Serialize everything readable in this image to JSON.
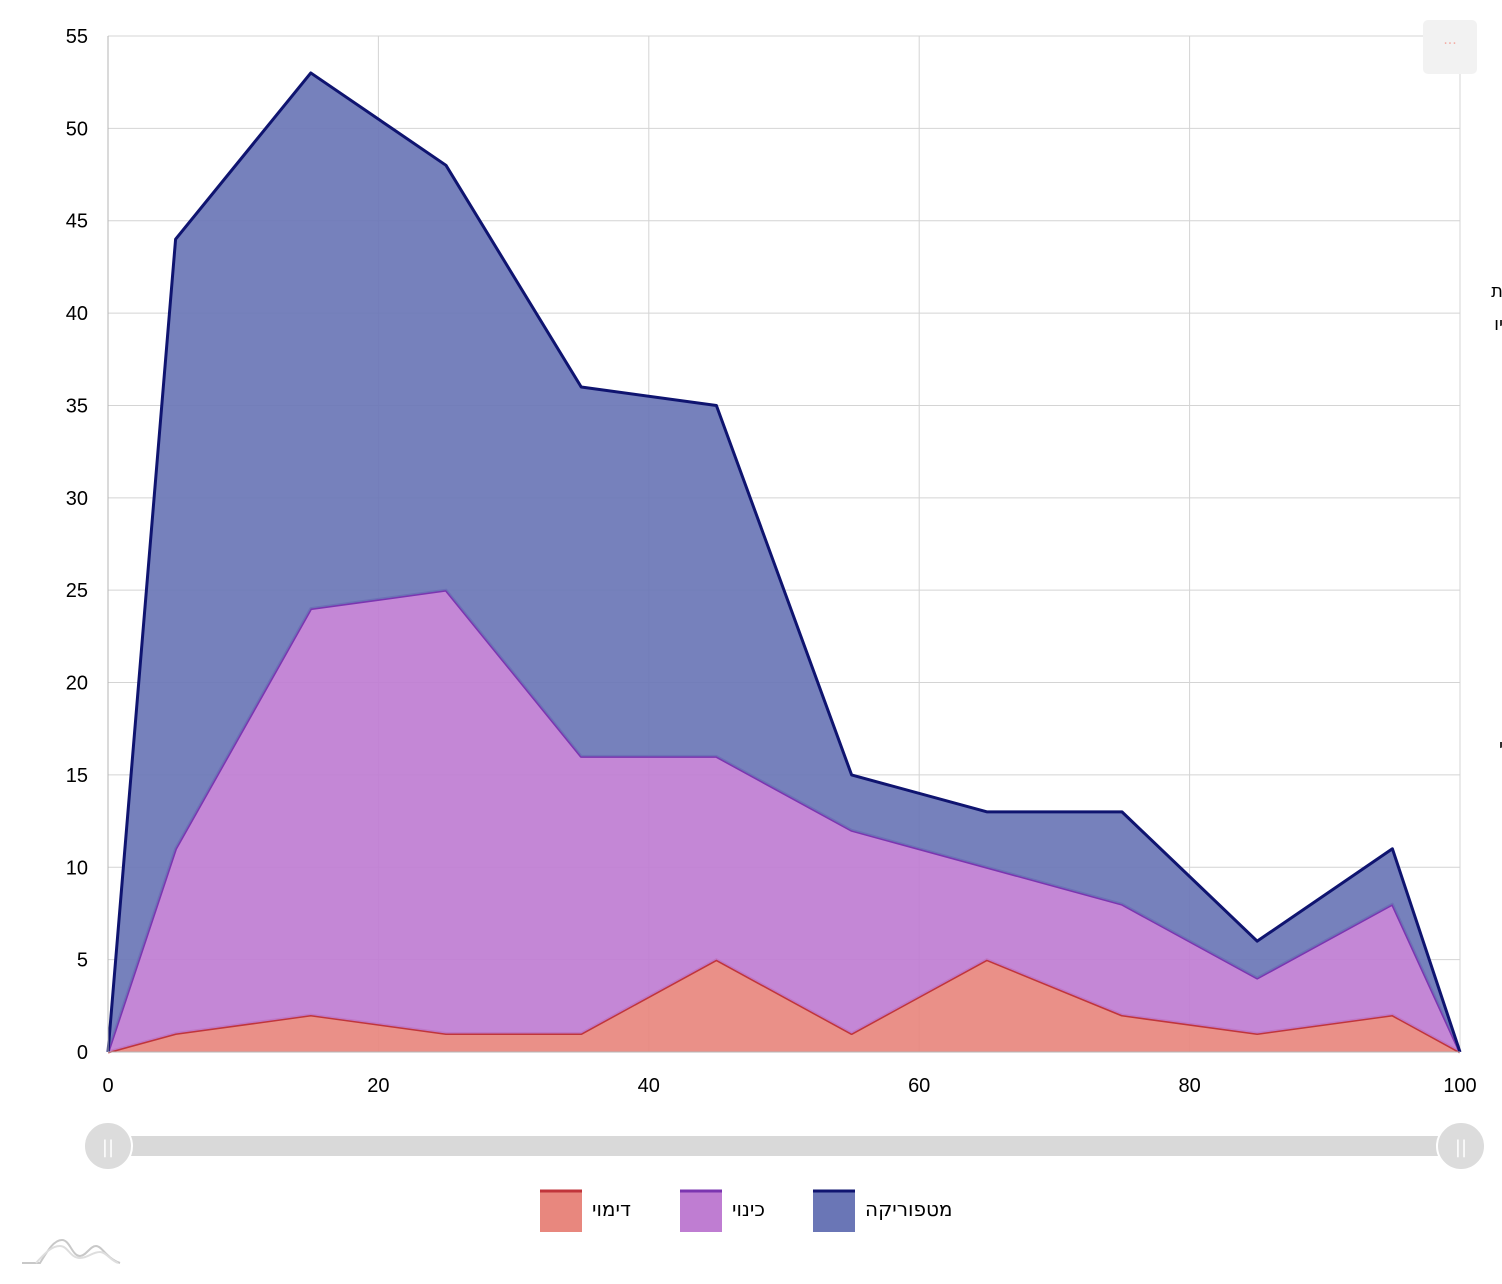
{
  "chart_data": {
    "type": "area",
    "stacked": true,
    "title": "",
    "xlabel": "",
    "ylabel": "",
    "x": [
      0,
      5,
      15,
      25,
      35,
      45,
      55,
      65,
      75,
      85,
      95,
      100
    ],
    "xlim": [
      0,
      100
    ],
    "ylim": [
      0,
      55
    ],
    "x_ticks": [
      "0",
      "20",
      "40",
      "60",
      "80",
      "100"
    ],
    "y_ticks": [
      "0",
      "5",
      "10",
      "15",
      "20",
      "25",
      "30",
      "35",
      "40",
      "45",
      "50",
      "55"
    ],
    "grid": true,
    "legend_position": "bottom",
    "series": [
      {
        "name": "דימוי",
        "values": [
          0,
          1,
          2,
          1,
          1,
          5,
          1,
          5,
          2,
          1,
          2,
          0
        ],
        "fill": "#e8877e",
        "stroke": "#c0353b"
      },
      {
        "name": "כינוי",
        "values": [
          0,
          10,
          22,
          24,
          15,
          11,
          11,
          5,
          6,
          3,
          6,
          0
        ],
        "fill": "#bf7dd2",
        "stroke": "#7b35b0"
      },
      {
        "name": "מטפוריקה",
        "values": [
          0,
          33,
          29,
          23,
          20,
          19,
          3,
          3,
          5,
          2,
          3,
          0
        ],
        "fill": "#6a76b6",
        "stroke": "#0f1470"
      }
    ],
    "side_labels": [
      "ת",
      "יו",
      "י"
    ]
  },
  "ui": {
    "menu_button_label": "···",
    "scrollbar_start_grip": "||",
    "scrollbar_end_grip": "||",
    "logo_icon": "amcharts-logo-icon"
  },
  "colors": {
    "grid": "#d4d4d4",
    "axis": "#b5b5b5",
    "scrollbar_track": "#d9d9d9",
    "scrollbar_grip": "#dcdcdc",
    "menu_bg": "#f2f2f2"
  }
}
